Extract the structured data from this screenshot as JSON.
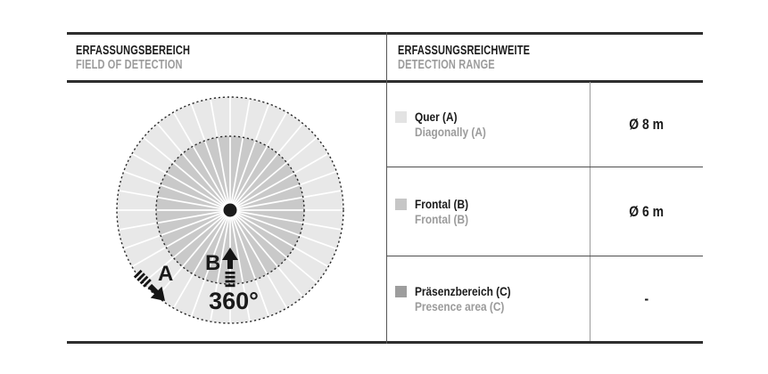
{
  "left_panel": {
    "title": "ERFASSUNGSBEREICH",
    "subtitle": "FIELD OF DETECTION",
    "diagram": {
      "sectors": 36,
      "outer_fill": "#e8e8e8",
      "inner_fill": "#c9c9c9",
      "label_a": "A",
      "label_b": "B",
      "angle_label": "360°"
    }
  },
  "right_panel": {
    "title": "ERFASSUNGSREICHWEITE",
    "subtitle": "DETECTION RANGE",
    "rows": [
      {
        "swatch": "#e3e3e3",
        "label": "Quer (A)",
        "sublabel": "Diagonally (A)",
        "value": "Ø 8 m"
      },
      {
        "swatch": "#c6c6c6",
        "label": "Frontal (B)",
        "sublabel": "Frontal (B)",
        "value": "Ø 6 m"
      },
      {
        "swatch": "#9d9d9d",
        "label": "Präsenzbereich (C)",
        "sublabel": "Presence area (C)",
        "value": "-"
      }
    ]
  }
}
